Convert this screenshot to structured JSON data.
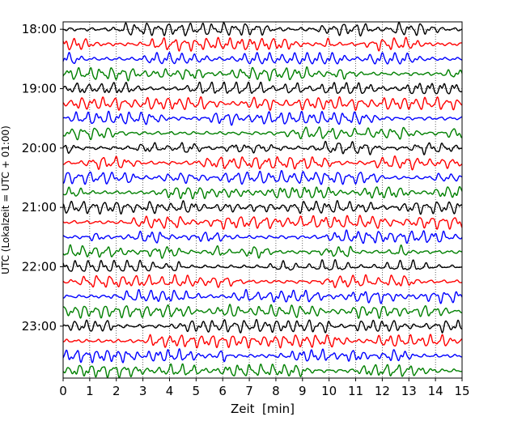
{
  "chart_data": {
    "type": "line",
    "title": "",
    "xlabel": "Zeit  [min]",
    "ylabel": "UTC (Lokalzeit = UTC + 01:00)",
    "xlim": [
      0,
      15
    ],
    "x_ticks": [
      "0",
      "1",
      "2",
      "3",
      "4",
      "5",
      "6",
      "7",
      "8",
      "9",
      "10",
      "11",
      "12",
      "13",
      "14",
      "15"
    ],
    "y_ticks": [
      "18:00",
      "19:00",
      "20:00",
      "21:00",
      "22:00",
      "23:00"
    ],
    "trace_interval_minutes": 15,
    "start_time": "18:00",
    "end_time": "23:45",
    "grid": true,
    "legend": "none",
    "trace_colors": [
      "#000000",
      "#ff0000",
      "#0000ff",
      "#008000"
    ],
    "series": [
      {
        "start": "18:00"
      },
      {
        "start": "18:15"
      },
      {
        "start": "18:30"
      },
      {
        "start": "18:45"
      },
      {
        "start": "19:00"
      },
      {
        "start": "19:15"
      },
      {
        "start": "19:30"
      },
      {
        "start": "19:45"
      },
      {
        "start": "20:00"
      },
      {
        "start": "20:15"
      },
      {
        "start": "20:30"
      },
      {
        "start": "20:45"
      },
      {
        "start": "21:00"
      },
      {
        "start": "21:15"
      },
      {
        "start": "21:30"
      },
      {
        "start": "21:45"
      },
      {
        "start": "22:00"
      },
      {
        "start": "22:15"
      },
      {
        "start": "22:30"
      },
      {
        "start": "22:45"
      },
      {
        "start": "23:00"
      },
      {
        "start": "23:15"
      },
      {
        "start": "23:30"
      },
      {
        "start": "23:45"
      }
    ]
  }
}
